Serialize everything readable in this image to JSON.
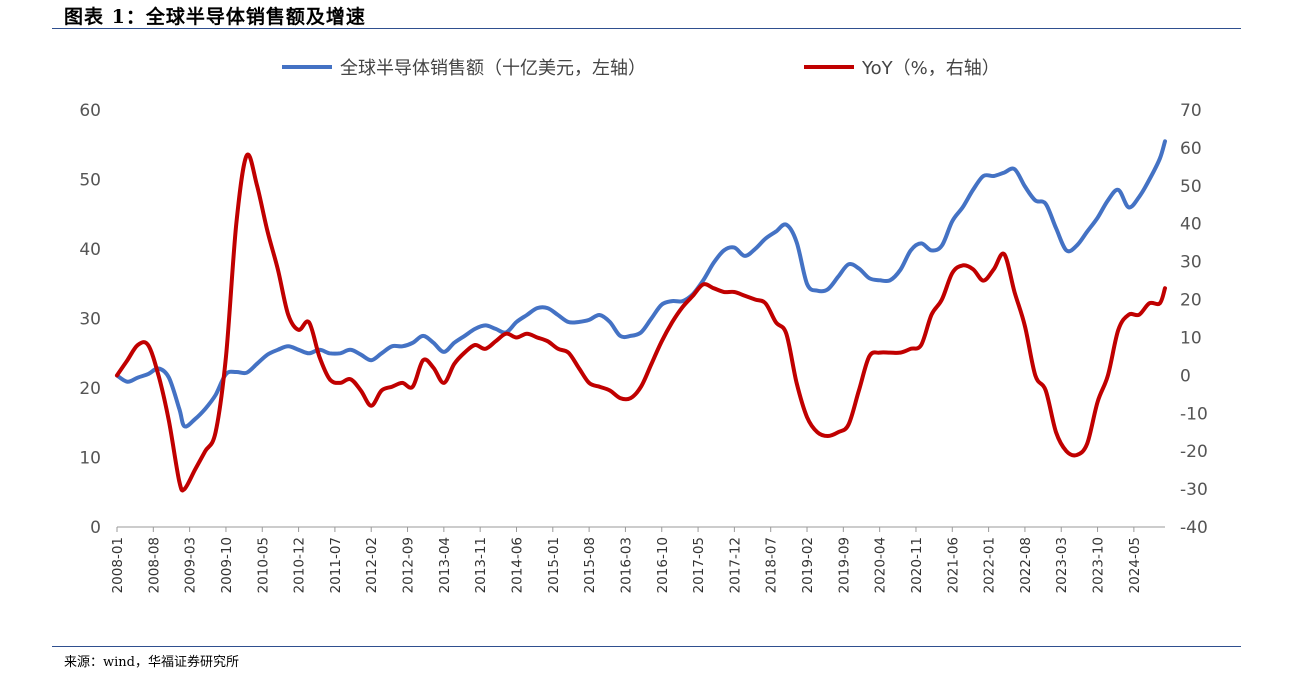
{
  "header": {
    "title": "图表 1：全球半导体销售额及增速"
  },
  "footer": {
    "source": "来源：wind，华福证券研究所"
  },
  "colors": {
    "series1": "#4472c4",
    "series2": "#c00000",
    "rule": "#2f4f8f"
  },
  "chart_data": {
    "type": "line",
    "title": "",
    "legend_position": "top-center",
    "grid": false,
    "x_range": [
      "2008-01",
      "2024-11"
    ],
    "xticks": [
      "2008-01",
      "2008-08",
      "2009-03",
      "2009-10",
      "2010-05",
      "2010-12",
      "2011-07",
      "2012-02",
      "2012-09",
      "2013-04",
      "2013-11",
      "2014-06",
      "2015-01",
      "2015-08",
      "2016-03",
      "2016-10",
      "2017-05",
      "2017-12",
      "2018-07",
      "2019-02",
      "2019-09",
      "2020-04",
      "2020-11",
      "2021-06",
      "2022-01",
      "2022-08",
      "2023-03",
      "2023-10",
      "2024-05"
    ],
    "y_left": {
      "ylim": [
        0,
        60
      ],
      "ticks": [
        0,
        10,
        20,
        30,
        40,
        50,
        60
      ]
    },
    "y_right": {
      "ylim": [
        -40,
        70
      ],
      "ticks": [
        -40,
        -30,
        -20,
        -10,
        0,
        10,
        20,
        30,
        40,
        50,
        60,
        70
      ]
    },
    "series": [
      {
        "name": "全球半导体销售额（十亿美元，左轴）",
        "axis": "left",
        "points": [
          [
            "2008-01",
            21.8
          ],
          [
            "2008-03",
            20.9
          ],
          [
            "2008-05",
            21.5
          ],
          [
            "2008-07",
            22.0
          ],
          [
            "2008-09",
            22.8
          ],
          [
            "2008-11",
            21.5
          ],
          [
            "2009-01",
            17.0
          ],
          [
            "2009-02",
            14.5
          ],
          [
            "2009-04",
            15.5
          ],
          [
            "2009-06",
            17.0
          ],
          [
            "2009-08",
            19.0
          ],
          [
            "2009-10",
            22.0
          ],
          [
            "2009-12",
            22.3
          ],
          [
            "2010-02",
            22.2
          ],
          [
            "2010-04",
            23.5
          ],
          [
            "2010-06",
            24.8
          ],
          [
            "2010-08",
            25.5
          ],
          [
            "2010-10",
            26.0
          ],
          [
            "2010-12",
            25.5
          ],
          [
            "2011-02",
            25.0
          ],
          [
            "2011-04",
            25.5
          ],
          [
            "2011-06",
            25.0
          ],
          [
            "2011-08",
            25.0
          ],
          [
            "2011-10",
            25.5
          ],
          [
            "2011-12",
            24.8
          ],
          [
            "2012-02",
            24.0
          ],
          [
            "2012-04",
            25.0
          ],
          [
            "2012-06",
            26.0
          ],
          [
            "2012-08",
            26.0
          ],
          [
            "2012-10",
            26.5
          ],
          [
            "2012-12",
            27.5
          ],
          [
            "2013-02",
            26.5
          ],
          [
            "2013-04",
            25.2
          ],
          [
            "2013-06",
            26.5
          ],
          [
            "2013-08",
            27.5
          ],
          [
            "2013-10",
            28.5
          ],
          [
            "2013-12",
            29.0
          ],
          [
            "2014-02",
            28.5
          ],
          [
            "2014-04",
            28.0
          ],
          [
            "2014-06",
            29.5
          ],
          [
            "2014-08",
            30.5
          ],
          [
            "2014-10",
            31.5
          ],
          [
            "2014-12",
            31.5
          ],
          [
            "2015-02",
            30.5
          ],
          [
            "2015-04",
            29.5
          ],
          [
            "2015-06",
            29.5
          ],
          [
            "2015-08",
            29.8
          ],
          [
            "2015-10",
            30.5
          ],
          [
            "2015-12",
            29.5
          ],
          [
            "2016-02",
            27.5
          ],
          [
            "2016-04",
            27.5
          ],
          [
            "2016-06",
            28.0
          ],
          [
            "2016-08",
            30.0
          ],
          [
            "2016-10",
            32.0
          ],
          [
            "2016-12",
            32.5
          ],
          [
            "2017-02",
            32.5
          ],
          [
            "2017-04",
            33.5
          ],
          [
            "2017-06",
            35.5
          ],
          [
            "2017-08",
            38.0
          ],
          [
            "2017-10",
            39.8
          ],
          [
            "2017-12",
            40.2
          ],
          [
            "2018-02",
            39.0
          ],
          [
            "2018-04",
            40.0
          ],
          [
            "2018-06",
            41.5
          ],
          [
            "2018-08",
            42.5
          ],
          [
            "2018-10",
            43.5
          ],
          [
            "2018-12",
            41.0
          ],
          [
            "2019-02",
            35.0
          ],
          [
            "2019-04",
            34.0
          ],
          [
            "2019-06",
            34.2
          ],
          [
            "2019-08",
            36.0
          ],
          [
            "2019-10",
            37.8
          ],
          [
            "2019-12",
            37.2
          ],
          [
            "2020-02",
            35.8
          ],
          [
            "2020-04",
            35.5
          ],
          [
            "2020-06",
            35.5
          ],
          [
            "2020-08",
            37.0
          ],
          [
            "2020-10",
            39.8
          ],
          [
            "2020-12",
            40.8
          ],
          [
            "2021-02",
            39.8
          ],
          [
            "2021-04",
            40.5
          ],
          [
            "2021-06",
            44.0
          ],
          [
            "2021-08",
            46.0
          ],
          [
            "2021-10",
            48.5
          ],
          [
            "2021-12",
            50.5
          ],
          [
            "2022-02",
            50.5
          ],
          [
            "2022-04",
            51.0
          ],
          [
            "2022-06",
            51.5
          ],
          [
            "2022-08",
            49.0
          ],
          [
            "2022-10",
            47.0
          ],
          [
            "2022-12",
            46.5
          ],
          [
            "2023-02",
            43.0
          ],
          [
            "2023-04",
            39.8
          ],
          [
            "2023-06",
            40.5
          ],
          [
            "2023-08",
            42.5
          ],
          [
            "2023-10",
            44.5
          ],
          [
            "2023-12",
            47.0
          ],
          [
            "2024-02",
            48.5
          ],
          [
            "2024-04",
            46.0
          ],
          [
            "2024-06",
            47.5
          ],
          [
            "2024-08",
            50.0
          ],
          [
            "2024-10",
            53.0
          ],
          [
            "2024-11",
            55.5
          ]
        ]
      },
      {
        "name": "YoY（%，右轴）",
        "axis": "right",
        "points": [
          [
            "2008-01",
            0
          ],
          [
            "2008-03",
            4
          ],
          [
            "2008-05",
            8
          ],
          [
            "2008-07",
            8
          ],
          [
            "2008-09",
            0
          ],
          [
            "2008-11",
            -12
          ],
          [
            "2009-01",
            -28
          ],
          [
            "2009-02",
            -30
          ],
          [
            "2009-04",
            -25
          ],
          [
            "2009-06",
            -20
          ],
          [
            "2009-08",
            -15
          ],
          [
            "2009-10",
            5
          ],
          [
            "2009-12",
            40
          ],
          [
            "2010-02",
            58
          ],
          [
            "2010-04",
            50
          ],
          [
            "2010-06",
            38
          ],
          [
            "2010-08",
            28
          ],
          [
            "2010-10",
            16
          ],
          [
            "2010-12",
            12
          ],
          [
            "2011-02",
            14
          ],
          [
            "2011-04",
            5
          ],
          [
            "2011-06",
            -1
          ],
          [
            "2011-08",
            -2
          ],
          [
            "2011-10",
            -1
          ],
          [
            "2011-12",
            -4
          ],
          [
            "2012-02",
            -8
          ],
          [
            "2012-04",
            -4
          ],
          [
            "2012-06",
            -3
          ],
          [
            "2012-08",
            -2
          ],
          [
            "2012-10",
            -3
          ],
          [
            "2012-12",
            4
          ],
          [
            "2013-02",
            2
          ],
          [
            "2013-04",
            -2
          ],
          [
            "2013-06",
            3
          ],
          [
            "2013-08",
            6
          ],
          [
            "2013-10",
            8
          ],
          [
            "2013-12",
            7
          ],
          [
            "2014-02",
            9
          ],
          [
            "2014-04",
            11
          ],
          [
            "2014-06",
            10
          ],
          [
            "2014-08",
            11
          ],
          [
            "2014-10",
            10
          ],
          [
            "2014-12",
            9
          ],
          [
            "2015-02",
            7
          ],
          [
            "2015-04",
            6
          ],
          [
            "2015-06",
            2
          ],
          [
            "2015-08",
            -2
          ],
          [
            "2015-10",
            -3
          ],
          [
            "2015-12",
            -4
          ],
          [
            "2016-02",
            -6
          ],
          [
            "2016-04",
            -6
          ],
          [
            "2016-06",
            -3
          ],
          [
            "2016-08",
            3
          ],
          [
            "2016-10",
            9
          ],
          [
            "2016-12",
            14
          ],
          [
            "2017-02",
            18
          ],
          [
            "2017-04",
            21
          ],
          [
            "2017-06",
            24
          ],
          [
            "2017-08",
            23
          ],
          [
            "2017-10",
            22
          ],
          [
            "2017-12",
            22
          ],
          [
            "2018-02",
            21
          ],
          [
            "2018-04",
            20
          ],
          [
            "2018-06",
            19
          ],
          [
            "2018-08",
            14
          ],
          [
            "2018-10",
            11
          ],
          [
            "2018-12",
            -2
          ],
          [
            "2019-02",
            -11
          ],
          [
            "2019-04",
            -15
          ],
          [
            "2019-06",
            -16
          ],
          [
            "2019-08",
            -15
          ],
          [
            "2019-10",
            -13
          ],
          [
            "2019-12",
            -4
          ],
          [
            "2020-02",
            5
          ],
          [
            "2020-04",
            6
          ],
          [
            "2020-06",
            6
          ],
          [
            "2020-08",
            6
          ],
          [
            "2020-10",
            7
          ],
          [
            "2020-12",
            8
          ],
          [
            "2021-02",
            16
          ],
          [
            "2021-04",
            20
          ],
          [
            "2021-06",
            27
          ],
          [
            "2021-08",
            29
          ],
          [
            "2021-10",
            28
          ],
          [
            "2021-12",
            25
          ],
          [
            "2022-02",
            28
          ],
          [
            "2022-04",
            32
          ],
          [
            "2022-06",
            22
          ],
          [
            "2022-08",
            13
          ],
          [
            "2022-10",
            0
          ],
          [
            "2022-12",
            -4
          ],
          [
            "2023-02",
            -15
          ],
          [
            "2023-04",
            -20
          ],
          [
            "2023-06",
            -21
          ],
          [
            "2023-08",
            -18
          ],
          [
            "2023-10",
            -7
          ],
          [
            "2023-12",
            0
          ],
          [
            "2024-02",
            12
          ],
          [
            "2024-04",
            16
          ],
          [
            "2024-06",
            16
          ],
          [
            "2024-08",
            19
          ],
          [
            "2024-10",
            19
          ],
          [
            "2024-11",
            23
          ]
        ]
      }
    ]
  }
}
